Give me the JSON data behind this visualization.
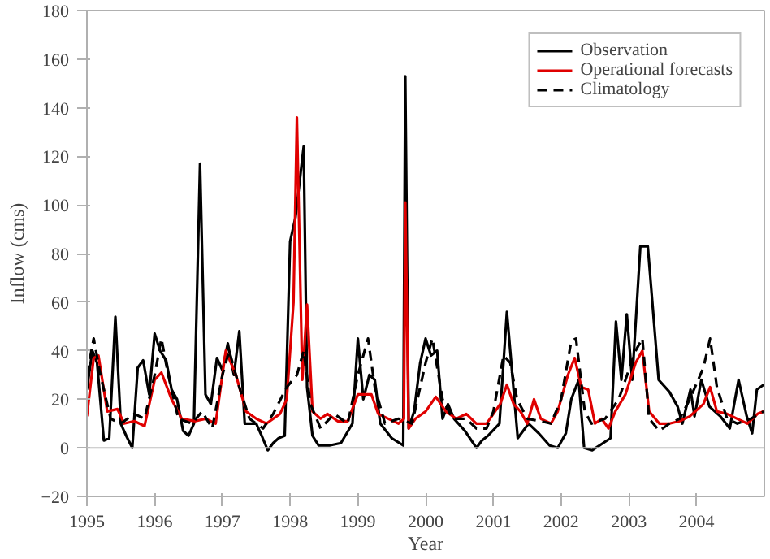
{
  "chart_data": {
    "type": "line",
    "xlabel": "Year",
    "ylabel": "Inflow (cms)",
    "xlim": [
      1995,
      2005
    ],
    "ylim": [
      -20,
      180
    ],
    "xticks": [
      {
        "value": 1995,
        "label": "1995"
      },
      {
        "value": 1996,
        "label": "1996"
      },
      {
        "value": 1997,
        "label": "1997"
      },
      {
        "value": 1998,
        "label": "1998"
      },
      {
        "value": 1999,
        "label": "1999"
      },
      {
        "value": 2000,
        "label": "2000"
      },
      {
        "value": 2001,
        "label": "2001"
      },
      {
        "value": 2002,
        "label": "2002"
      },
      {
        "value": 2003,
        "label": "2003"
      },
      {
        "value": 2004,
        "label": "2004"
      }
    ],
    "yticks": [
      -20,
      0,
      20,
      40,
      60,
      80,
      100,
      120,
      140,
      160,
      180
    ],
    "grid": false,
    "legend": "top right",
    "marker": "none",
    "ref_lines": [
      {
        "axis": "y",
        "value": 0,
        "color": "#c0c0c0"
      }
    ],
    "series": [
      {
        "name": "Observation",
        "color": "#000000",
        "line_style": "solid",
        "x": [
          1995.0,
          1995.08,
          1995.15,
          1995.25,
          1995.33,
          1995.42,
          1995.5,
          1995.58,
          1995.67,
          1995.75,
          1995.83,
          1995.92,
          1996.0,
          1996.08,
          1996.17,
          1996.25,
          1996.33,
          1996.42,
          1996.5,
          1996.58,
          1996.67,
          1996.75,
          1996.83,
          1996.92,
          1997.0,
          1997.08,
          1997.17,
          1997.25,
          1997.33,
          1997.5,
          1997.58,
          1997.67,
          1997.75,
          1997.83,
          1997.92,
          1998.0,
          1998.08,
          1998.2,
          1998.25,
          1998.33,
          1998.42,
          1998.58,
          1998.75,
          1998.92,
          1999.0,
          1999.08,
          1999.17,
          1999.25,
          1999.33,
          1999.5,
          1999.67,
          1999.7,
          1999.75,
          1999.83,
          1999.92,
          2000.0,
          2000.08,
          2000.17,
          2000.25,
          2000.33,
          2000.42,
          2000.58,
          2000.75,
          2000.83,
          2000.92,
          2001.09,
          2001.2,
          2001.36,
          2001.52,
          2001.67,
          2001.83,
          2001.95,
          2002.07,
          2002.15,
          2002.26,
          2002.34,
          2002.46,
          2002.73,
          2002.81,
          2002.89,
          2002.97,
          2003.05,
          2003.17,
          2003.28,
          2003.44,
          2003.6,
          2003.72,
          2003.79,
          2003.91,
          2003.97,
          2004.07,
          2004.19,
          2004.35,
          2004.49,
          2004.62,
          2004.74,
          2004.82,
          2004.89,
          2004.99
        ],
        "values": [
          24,
          40,
          35,
          3,
          4,
          54,
          10,
          5,
          0,
          33,
          36,
          22,
          47,
          40,
          36,
          24,
          20,
          7,
          5,
          10,
          117,
          22,
          18,
          37,
          32,
          43,
          30,
          48,
          10,
          10,
          5,
          -1,
          2,
          4,
          5,
          85,
          95,
          124,
          25,
          5,
          1,
          1,
          2,
          10,
          45,
          20,
          30,
          28,
          10,
          4,
          1,
          153,
          8,
          15,
          35,
          45,
          38,
          40,
          12,
          18,
          12,
          7,
          0,
          3,
          5,
          10,
          56,
          4,
          10,
          6,
          1,
          0,
          6,
          20,
          28,
          0,
          -1,
          4,
          52,
          28,
          55,
          28,
          83,
          83,
          28,
          23,
          17,
          10,
          24,
          13,
          28,
          17,
          13,
          8,
          28,
          13,
          6,
          24,
          26
        ]
      },
      {
        "name": "Operational forecasts",
        "color": "#e00000",
        "line_style": "solid",
        "x": [
          1995.0,
          1995.1,
          1995.17,
          1995.3,
          1995.45,
          1995.55,
          1995.7,
          1995.85,
          1996.0,
          1996.1,
          1996.25,
          1996.4,
          1996.6,
          1996.75,
          1996.9,
          1997.05,
          1997.2,
          1997.35,
          1997.5,
          1997.65,
          1997.85,
          1997.95,
          1998.05,
          1998.1,
          1998.18,
          1998.25,
          1998.33,
          1998.45,
          1998.55,
          1998.7,
          1998.85,
          1999.0,
          1999.1,
          1999.2,
          1999.3,
          1999.45,
          1999.6,
          1999.68,
          1999.7,
          1999.75,
          1999.85,
          2000.0,
          2000.15,
          2000.3,
          2000.45,
          2000.6,
          2000.75,
          2000.9,
          2001.1,
          2001.2,
          2001.3,
          2001.4,
          2001.5,
          2001.6,
          2001.7,
          2001.85,
          2001.95,
          2002.1,
          2002.2,
          2002.3,
          2002.4,
          2002.5,
          2002.6,
          2002.7,
          2002.8,
          2002.95,
          2003.1,
          2003.2,
          2003.3,
          2003.45,
          2003.6,
          2003.75,
          2003.9,
          2004.1,
          2004.2,
          2004.3,
          2004.45,
          2004.6,
          2004.75,
          2004.9,
          2004.99
        ],
        "values": [
          13,
          37,
          38,
          15,
          16,
          10,
          11,
          9,
          28,
          31,
          20,
          12,
          11,
          12,
          10,
          40,
          30,
          15,
          12,
          10,
          14,
          20,
          60,
          136,
          28,
          59,
          15,
          12,
          14,
          11,
          11,
          22,
          22,
          22,
          14,
          12,
          10,
          12,
          101,
          8,
          12,
          15,
          21,
          15,
          12,
          14,
          10,
          10,
          18,
          26,
          18,
          15,
          10,
          20,
          12,
          10,
          15,
          30,
          37,
          25,
          24,
          10,
          12,
          8,
          15,
          22,
          35,
          40,
          15,
          10,
          10,
          11,
          13,
          18,
          25,
          15,
          14,
          12,
          10,
          14,
          15
        ]
      },
      {
        "name": "Climatology",
        "color": "#000000",
        "line_style": "dashed",
        "x": [
          1995.0,
          1995.1,
          1995.2,
          1995.35,
          1995.5,
          1995.7,
          1995.85,
          1996.0,
          1996.1,
          1996.2,
          1996.35,
          1996.55,
          1996.7,
          1996.85,
          1997.0,
          1997.1,
          1997.25,
          1997.4,
          1997.6,
          1997.75,
          1997.95,
          1998.1,
          1998.2,
          1998.3,
          1998.45,
          1998.65,
          1998.85,
          1999.0,
          1999.15,
          1999.25,
          1999.4,
          1999.6,
          1999.8,
          2000.0,
          2000.1,
          2000.25,
          2000.4,
          2000.6,
          2000.75,
          2000.9,
          2001.0,
          2001.15,
          2001.25,
          2001.35,
          2001.5,
          2001.7,
          2001.85,
          2002.0,
          2002.15,
          2002.22,
          2002.35,
          2002.45,
          2002.65,
          2002.85,
          2003.1,
          2003.2,
          2003.3,
          2003.45,
          2003.6,
          2003.75,
          2003.9,
          2004.1,
          2004.2,
          2004.3,
          2004.45,
          2004.6,
          2004.8,
          2004.99
        ],
        "values": [
          30,
          45,
          30,
          12,
          10,
          14,
          12,
          30,
          45,
          30,
          12,
          10,
          15,
          8,
          30,
          40,
          25,
          12,
          8,
          14,
          25,
          30,
          40,
          18,
          8,
          14,
          10,
          30,
          45,
          25,
          10,
          12,
          10,
          35,
          45,
          20,
          12,
          12,
          8,
          8,
          15,
          38,
          35,
          20,
          12,
          11,
          10,
          20,
          44,
          45,
          15,
          10,
          12,
          20,
          40,
          45,
          12,
          7,
          10,
          12,
          20,
          33,
          45,
          25,
          12,
          10,
          12,
          15
        ]
      }
    ]
  }
}
